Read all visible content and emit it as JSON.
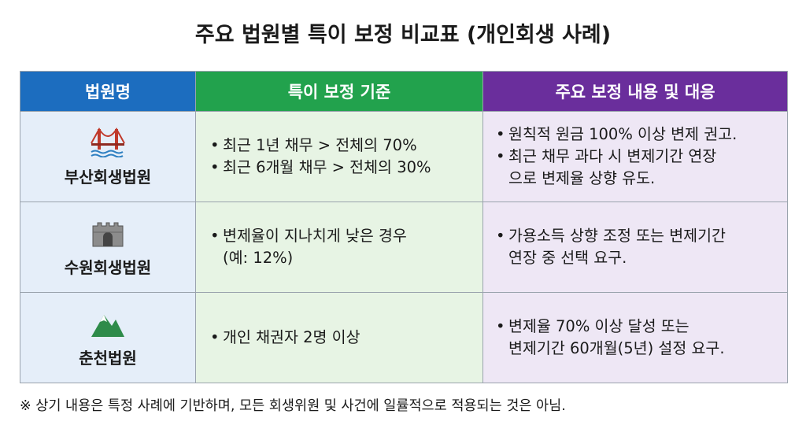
{
  "header": {
    "title": "주요 법원별 특이 보정 비교표 (개인회생 사례)"
  },
  "table": {
    "columns": [
      "법원명",
      "특이 보정 기준",
      "주요 보정 내용 및 대응"
    ],
    "rows": [
      {
        "court": "부산회생법원",
        "criteria": [
          [
            "최근 1년 채무 > 전체의 70%"
          ],
          [
            "최근 6개월 채무 > 전체의 30%"
          ]
        ],
        "measures": [
          [
            "원칙적 원금 100% 이상 변제 권고."
          ],
          [
            "최근 채무 과다 시 변제기간 연장",
            "으로 변제율 상향 유도."
          ]
        ]
      },
      {
        "court": "수원회생법원",
        "criteria": [
          [
            "변제율이 지나치게 낮은 경우",
            "(예: 12%)"
          ]
        ],
        "measures": [
          [
            "가용소득 상향 조정 또는 변제기간",
            "연장 중 선택 요구."
          ]
        ]
      },
      {
        "court": "춘천법원",
        "criteria": [
          [
            "개인 채권자 2명 이상"
          ]
        ],
        "measures": [
          [
            "변제율 70% 이상 달성 또는",
            "변제기간 60개월(5년) 설정 요구."
          ]
        ]
      }
    ]
  },
  "footnote": "※ 상기 내용은 특정 사례에 기반하며, 모든 회생위원 및 사건에 일률적으로 적용되는 것은 아님."
}
